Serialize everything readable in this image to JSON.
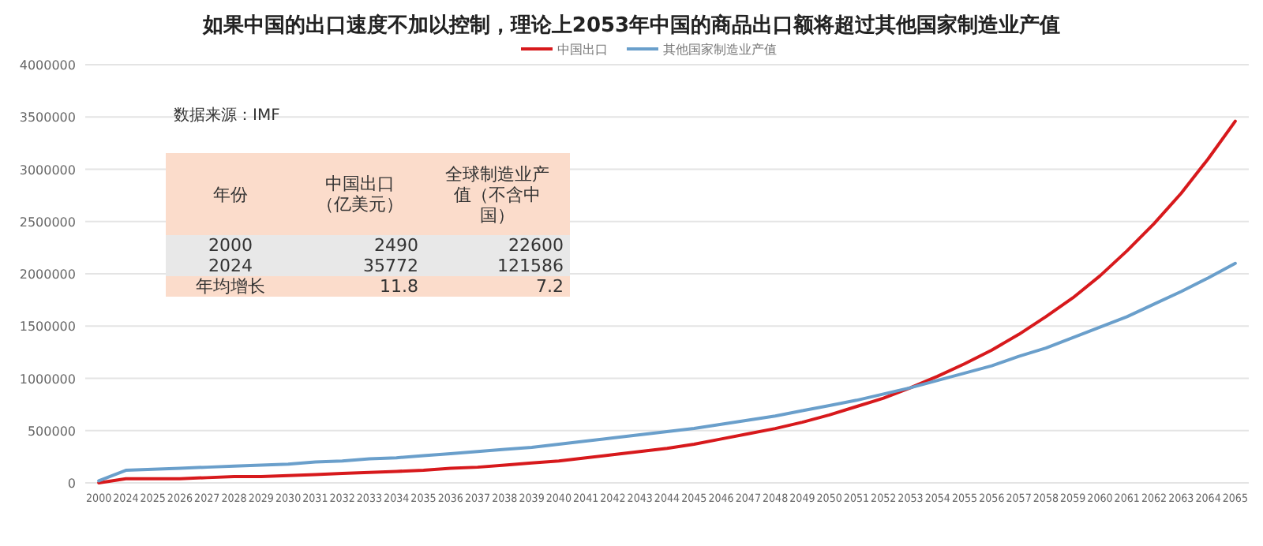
{
  "chart_data": {
    "type": "line",
    "title": "如果中国的出口速度不加以控制，理论上2053年中国的商品出口额将超过其他国家制造业产值",
    "categories": [
      "2000",
      "2024",
      "2025",
      "2026",
      "2027",
      "2028",
      "2029",
      "2030",
      "2031",
      "2032",
      "2033",
      "2034",
      "2035",
      "2036",
      "2037",
      "2038",
      "2039",
      "2040",
      "2041",
      "2042",
      "2043",
      "2044",
      "2045",
      "2046",
      "2047",
      "2048",
      "2049",
      "2050",
      "2051",
      "2052",
      "2053",
      "2054",
      "2055",
      "2056",
      "2057",
      "2058",
      "2059",
      "2060",
      "2061",
      "2062",
      "2063",
      "2064",
      "2065"
    ],
    "series": [
      {
        "name": "中国出口",
        "color": "#d7191c",
        "values": [
          0,
          40000,
          40000,
          40000,
          50000,
          60000,
          60000,
          70000,
          80000,
          90000,
          100000,
          110000,
          120000,
          140000,
          150000,
          170000,
          190000,
          210000,
          240000,
          270000,
          300000,
          330000,
          370000,
          420000,
          470000,
          520000,
          580000,
          650000,
          730000,
          810000,
          910000,
          1020000,
          1140000,
          1270000,
          1420000,
          1590000,
          1770000,
          1980000,
          2220000,
          2480000,
          2770000,
          3100000,
          3460000
        ]
      },
      {
        "name": "其他国家制造业产值",
        "color": "#6a9fcb",
        "values": [
          20000,
          120000,
          130000,
          140000,
          150000,
          160000,
          170000,
          180000,
          200000,
          210000,
          230000,
          240000,
          260000,
          280000,
          300000,
          320000,
          340000,
          370000,
          400000,
          430000,
          460000,
          490000,
          520000,
          560000,
          600000,
          640000,
          690000,
          740000,
          790000,
          850000,
          910000,
          980000,
          1050000,
          1120000,
          1210000,
          1290000,
          1390000,
          1490000,
          1590000,
          1710000,
          1830000,
          1960000,
          2100000
        ]
      }
    ],
    "ylim": [
      0,
      4000000
    ],
    "yticks": [
      0,
      500000,
      1000000,
      1500000,
      2000000,
      2500000,
      3000000,
      3500000,
      4000000
    ],
    "grid": "y",
    "legend": "top",
    "line_style": "solid",
    "marker": "none",
    "annotations": [
      "数据来源：IMF",
      "年份",
      "中国出口（亿美元）",
      "全球制造业产值（不含中国）",
      "2000",
      "2490",
      "22600",
      "2024",
      "35772",
      "121586",
      "年均增长",
      "11.8",
      "7.2"
    ]
  }
}
